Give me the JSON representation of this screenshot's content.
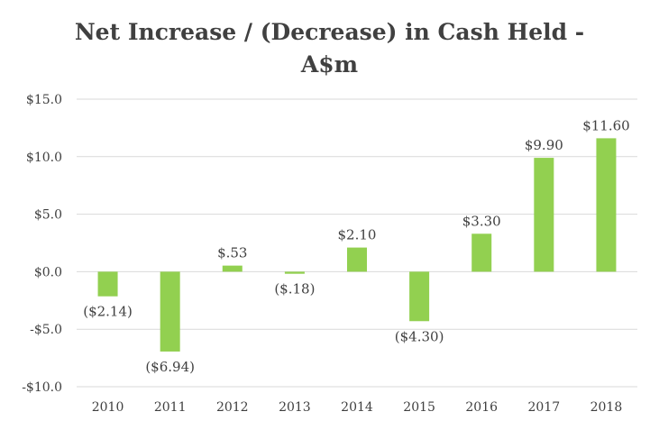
{
  "chart_data": {
    "type": "bar",
    "title_line1": "Net Increase / (Decrease) in Cash Held -",
    "title_line2": "A$m",
    "categories": [
      "2010",
      "2011",
      "2012",
      "2013",
      "2014",
      "2015",
      "2016",
      "2017",
      "2018"
    ],
    "values": [
      -2.14,
      -6.94,
      0.53,
      -0.18,
      2.1,
      -4.3,
      3.3,
      9.9,
      11.6
    ],
    "data_labels": [
      "($2.14)",
      "($6.94)",
      "$.53",
      "($.18)",
      "$2.10",
      "($4.30)",
      "$3.30",
      "$9.90",
      "$11.60"
    ],
    "y_ticks": [
      15,
      10,
      5,
      0,
      -5,
      -10
    ],
    "y_tick_labels": [
      "$15.0",
      "$10.0",
      "$5.0",
      "$0.0",
      "-$5.0",
      "-$10.0"
    ],
    "ylim": [
      -10,
      15
    ],
    "grid": true,
    "bar_color": "#92D050",
    "grid_color": "#D9D9D9",
    "text_color": "#404040"
  }
}
